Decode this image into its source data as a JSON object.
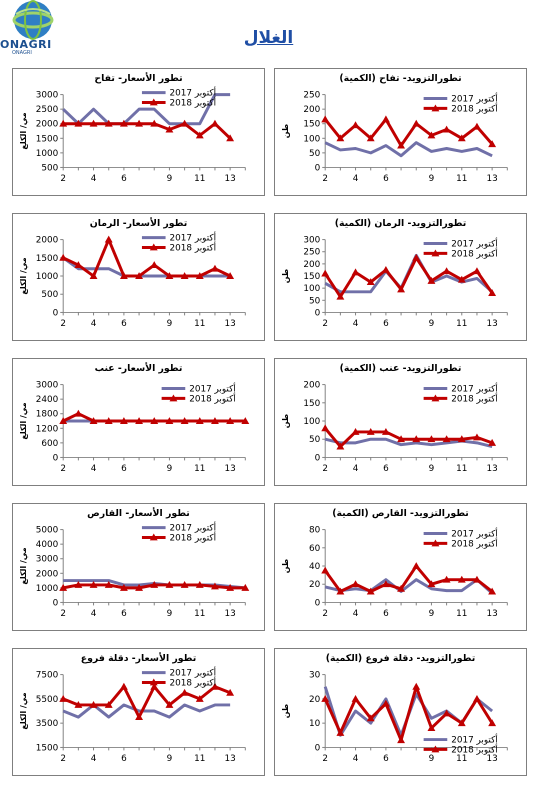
{
  "page_title": "الغلال",
  "logo": {
    "name": "ONAGRI",
    "sub": "ONAGRI"
  },
  "colors": {
    "oct2017": "#7070a8",
    "oct2018": "#c00000",
    "axis": "#808080",
    "frame": "#7f7f7f"
  },
  "chart_data": [
    {
      "type": "line",
      "title": "تطور الأسعار- تفاح",
      "ylabel": "مي/ الكلغ",
      "x": [
        2,
        3,
        4,
        5,
        6,
        7,
        8,
        9,
        10,
        11,
        12,
        13,
        14
      ],
      "x_ticks": [
        2,
        4,
        6,
        9,
        11,
        13
      ],
      "ylim": [
        500,
        3000
      ],
      "y_ticks": [
        500,
        1000,
        1500,
        2000,
        2500,
        3000
      ],
      "legend": [
        "أكتوبر 2017",
        "أكتوبر 2018"
      ],
      "legend_position": "top",
      "series": [
        {
          "name": "أكتوبر 2017",
          "values": [
            2500,
            2000,
            2500,
            2000,
            2000,
            2500,
            2500,
            2000,
            2000,
            2000,
            3000,
            3000,
            null
          ]
        },
        {
          "name": "أكتوبر 2018",
          "values": [
            2000,
            2000,
            2000,
            2000,
            2000,
            2000,
            2000,
            1800,
            2000,
            1600,
            2000,
            1500,
            null
          ]
        }
      ]
    },
    {
      "type": "line",
      "title": "تطورالتزويد- تفاح (الكمية)",
      "ylabel": "طن",
      "x": [
        2,
        3,
        4,
        5,
        6,
        7,
        8,
        9,
        10,
        11,
        12,
        13,
        14
      ],
      "x_ticks": [
        2,
        4,
        6,
        9,
        11,
        13
      ],
      "ylim": [
        0,
        250
      ],
      "y_ticks": [
        0,
        50,
        100,
        150,
        200,
        250
      ],
      "legend": [
        "أكتوبر 2017",
        "أكتوبر 2018"
      ],
      "legend_position": "top-right",
      "series": [
        {
          "name": "أكتوبر 2017",
          "values": [
            85,
            60,
            65,
            50,
            75,
            40,
            85,
            55,
            65,
            55,
            65,
            40,
            null
          ]
        },
        {
          "name": "أكتوبر 2018",
          "values": [
            165,
            100,
            145,
            100,
            165,
            75,
            150,
            110,
            130,
            100,
            140,
            80,
            null
          ]
        }
      ]
    },
    {
      "type": "line",
      "title": "تطور الأسعار- الرمان",
      "ylabel": "مي/ الكلغ",
      "x": [
        2,
        3,
        4,
        5,
        6,
        7,
        8,
        9,
        10,
        11,
        12,
        13,
        14
      ],
      "x_ticks": [
        2,
        4,
        6,
        9,
        11,
        13
      ],
      "ylim": [
        0,
        2000
      ],
      "y_ticks": [
        0,
        500,
        1000,
        1500,
        2000
      ],
      "legend": [
        "أكتوبر 2017",
        "أكتوبر 2018"
      ],
      "legend_position": "top",
      "series": [
        {
          "name": "أكتوبر 2017",
          "values": [
            1500,
            1200,
            1200,
            1200,
            1000,
            1000,
            1000,
            1000,
            1000,
            1000,
            1000,
            1000,
            null
          ]
        },
        {
          "name": "أكتوبر 2018",
          "values": [
            1500,
            1300,
            1000,
            2000,
            1000,
            1000,
            1300,
            1000,
            1000,
            1000,
            1200,
            1000,
            null
          ]
        }
      ]
    },
    {
      "type": "line",
      "title": "تطورالتزويد- الرمان (الكمية)",
      "ylabel": "طن",
      "x": [
        2,
        3,
        4,
        5,
        6,
        7,
        8,
        9,
        10,
        11,
        12,
        13,
        14
      ],
      "x_ticks": [
        2,
        4,
        6,
        9,
        11,
        13
      ],
      "ylim": [
        0,
        300
      ],
      "y_ticks": [
        0,
        50,
        100,
        150,
        200,
        250,
        300
      ],
      "legend": [
        "أكتوبر 2017",
        "أكتوبر 2018"
      ],
      "legend_position": "top-right",
      "series": [
        {
          "name": "أكتوبر 2017",
          "values": [
            120,
            85,
            85,
            85,
            170,
            100,
            235,
            125,
            150,
            125,
            140,
            85,
            null
          ]
        },
        {
          "name": "أكتوبر 2018",
          "values": [
            160,
            65,
            165,
            125,
            175,
            95,
            225,
            130,
            170,
            135,
            170,
            80,
            null
          ]
        }
      ]
    },
    {
      "type": "line",
      "title": "تطور الأسعار- عنب",
      "ylabel": "مي/ الكلغ",
      "x": [
        2,
        3,
        4,
        5,
        6,
        7,
        8,
        9,
        10,
        11,
        12,
        13,
        14
      ],
      "x_ticks": [
        2,
        4,
        6,
        9,
        11,
        13
      ],
      "ylim": [
        0,
        3000
      ],
      "y_ticks": [
        0,
        600,
        1200,
        1800,
        2400,
        3000
      ],
      "legend": [
        "أكتوبر 2017",
        "أكتوبر 2018"
      ],
      "legend_position": "top-right",
      "series": [
        {
          "name": "أكتوبر 2017",
          "values": [
            1500,
            1500,
            1500,
            1500,
            1500,
            1500,
            1500,
            1500,
            1500,
            1500,
            1500,
            1500,
            1500
          ]
        },
        {
          "name": "أكتوبر 2018",
          "values": [
            1500,
            1800,
            1500,
            1500,
            1500,
            1500,
            1500,
            1500,
            1500,
            1500,
            1500,
            1500,
            1500
          ]
        }
      ]
    },
    {
      "type": "line",
      "title": "تطورالتزويد- عنب (الكمية)",
      "ylabel": "طن",
      "x": [
        2,
        3,
        4,
        5,
        6,
        7,
        8,
        9,
        10,
        11,
        12,
        13,
        14
      ],
      "x_ticks": [
        2,
        4,
        6,
        9,
        11,
        13
      ],
      "ylim": [
        0,
        200
      ],
      "y_ticks": [
        0,
        50,
        100,
        150,
        200
      ],
      "legend": [
        "أكتوبر 2017",
        "أكتوبر 2018"
      ],
      "legend_position": "top-right",
      "series": [
        {
          "name": "أكتوبر 2017",
          "values": [
            50,
            40,
            40,
            50,
            50,
            35,
            40,
            35,
            40,
            45,
            40,
            30,
            null
          ]
        },
        {
          "name": "أكتوبر 2018",
          "values": [
            80,
            30,
            70,
            70,
            70,
            50,
            50,
            50,
            50,
            50,
            55,
            40,
            null
          ]
        }
      ]
    },
    {
      "type": "line",
      "title": "تطور الأسعار- القارص",
      "ylabel": "مي/ الكلغ",
      "x": [
        2,
        3,
        4,
        5,
        6,
        7,
        8,
        9,
        10,
        11,
        12,
        13,
        14
      ],
      "x_ticks": [
        2,
        4,
        6,
        9,
        11,
        13
      ],
      "ylim": [
        0,
        5000
      ],
      "y_ticks": [
        0,
        1000,
        2000,
        3000,
        4000,
        5000
      ],
      "legend": [
        "أكتوبر 2017",
        "أكتوبر 2018"
      ],
      "legend_position": "top",
      "series": [
        {
          "name": "أكتوبر 2017",
          "values": [
            1500,
            1500,
            1500,
            1500,
            1200,
            1200,
            1300,
            1200,
            1200,
            1200,
            1200,
            1100,
            1000
          ]
        },
        {
          "name": "أكتوبر 2018",
          "values": [
            1000,
            1200,
            1200,
            1200,
            1000,
            1000,
            1200,
            1200,
            1200,
            1200,
            1100,
            1000,
            1000
          ]
        }
      ]
    },
    {
      "type": "line",
      "title": "تطورالتزويد- القارص (الكمية)",
      "ylabel": "طن",
      "x": [
        2,
        3,
        4,
        5,
        6,
        7,
        8,
        9,
        10,
        11,
        12,
        13,
        14
      ],
      "x_ticks": [
        2,
        4,
        6,
        9,
        11,
        13
      ],
      "ylim": [
        0,
        80
      ],
      "y_ticks": [
        0,
        20,
        40,
        60,
        80
      ],
      "legend": [
        "أكتوبر 2017",
        "أكتوبر 2018"
      ],
      "legend_position": "top-right",
      "series": [
        {
          "name": "أكتوبر 2017",
          "values": [
            17,
            13,
            15,
            13,
            25,
            12,
            25,
            15,
            13,
            13,
            25,
            10,
            null
          ]
        },
        {
          "name": "أكتوبر 2018",
          "values": [
            35,
            12,
            20,
            12,
            20,
            15,
            40,
            20,
            25,
            25,
            25,
            12,
            null
          ]
        }
      ]
    },
    {
      "type": "line",
      "title": "تطور الأسعار- دقلة فروع",
      "ylabel": "مي/ الكلغ",
      "x": [
        2,
        3,
        4,
        5,
        6,
        7,
        8,
        9,
        10,
        11,
        12,
        13,
        14
      ],
      "x_ticks": [
        2,
        4,
        6,
        9,
        11,
        13
      ],
      "ylim": [
        1500,
        7500
      ],
      "y_ticks": [
        1500,
        3500,
        5500,
        7500
      ],
      "legend": [
        "أكتوبر 2017",
        "أكتوبر 2018"
      ],
      "legend_position": "top",
      "series": [
        {
          "name": "أكتوبر 2017",
          "values": [
            4500,
            4000,
            5000,
            4000,
            5000,
            4500,
            4500,
            4000,
            5000,
            4500,
            5000,
            5000,
            null
          ]
        },
        {
          "name": "أكتوبر 2018",
          "values": [
            5500,
            5000,
            5000,
            5000,
            6500,
            4000,
            6500,
            5000,
            6000,
            5500,
            6500,
            6000,
            null
          ]
        }
      ]
    },
    {
      "type": "line",
      "title": "تطورالتزويد- دقلة فروع (الكمية)",
      "ylabel": "طن",
      "x": [
        2,
        3,
        4,
        5,
        6,
        7,
        8,
        9,
        10,
        11,
        12,
        13,
        14
      ],
      "x_ticks": [
        2,
        4,
        6,
        9,
        11,
        13
      ],
      "ylim": [
        0,
        30
      ],
      "y_ticks": [
        0,
        10,
        20,
        30
      ],
      "legend": [
        "أكتوبر 2017",
        "أكتوبر 2018"
      ],
      "legend_position": "bottom-right",
      "series": [
        {
          "name": "أكتوبر 2017",
          "values": [
            25,
            5,
            15,
            10,
            20,
            5,
            22,
            12,
            15,
            10,
            20,
            15,
            null
          ]
        },
        {
          "name": "أكتوبر 2018",
          "values": [
            20,
            6,
            20,
            12,
            18,
            3,
            25,
            8,
            14,
            10,
            20,
            10,
            null
          ]
        }
      ]
    }
  ]
}
